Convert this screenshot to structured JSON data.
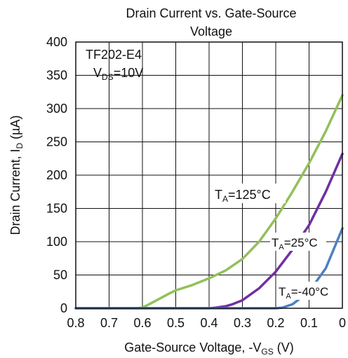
{
  "chart_data": {
    "type": "line",
    "title": [
      "Drain Current vs. Gate-Source",
      "Voltage"
    ],
    "part_number": "TF202-E4",
    "condition": {
      "main": "V",
      "sub": "DS",
      "rest": "=10V"
    },
    "xlabel": {
      "main": "Gate-Source Voltage, -V",
      "sub": "GS",
      "rest": " (V)"
    },
    "ylabel": {
      "main": "Drain Current, I",
      "sub": "D",
      "rest": " (µA)"
    },
    "xlim": [
      0.8,
      0
    ],
    "ylim": [
      0,
      400
    ],
    "x_ticks": [
      0.8,
      0.7,
      0.6,
      0.5,
      0.4,
      0.3,
      0.2,
      0.1,
      0
    ],
    "x_tick_labels": [
      "0.8",
      "0.7",
      "0.6",
      "0.5",
      "0.4",
      "0.3",
      "0.2",
      "0.1",
      "0"
    ],
    "y_ticks": [
      0,
      50,
      100,
      150,
      200,
      250,
      300,
      350,
      400
    ],
    "y_tick_labels": [
      "0",
      "50",
      "100",
      "150",
      "200",
      "250",
      "300",
      "350",
      "400"
    ],
    "grid": true,
    "series": [
      {
        "name": {
          "main": "T",
          "sub": "A",
          "rest": "=125°C"
        },
        "color": "#92c05a",
        "x": [
          0.8,
          0.7,
          0.62,
          0.6,
          0.58,
          0.55,
          0.52,
          0.5,
          0.45,
          0.4,
          0.35,
          0.3,
          0.25,
          0.2,
          0.15,
          0.1,
          0.05,
          0
        ],
        "y": [
          0,
          0,
          0,
          1,
          6,
          14,
          22,
          27,
          35,
          45,
          57,
          74,
          100,
          135,
          175,
          218,
          266,
          320
        ]
      },
      {
        "name": {
          "main": "T",
          "sub": "A",
          "rest": "=25°C"
        },
        "color": "#7030a0",
        "x": [
          0.8,
          0.5,
          0.45,
          0.4,
          0.38,
          0.35,
          0.33,
          0.3,
          0.25,
          0.2,
          0.15,
          0.1,
          0.05,
          0
        ],
        "y": [
          0,
          0,
          0,
          0,
          1,
          3,
          6,
          12,
          30,
          55,
          88,
          125,
          175,
          232
        ]
      },
      {
        "name": {
          "main": "T",
          "sub": "A",
          "rest": "=-40°C"
        },
        "color": "#4f81bd",
        "x": [
          0.8,
          0.3,
          0.25,
          0.2,
          0.18,
          0.15,
          0.1,
          0.05,
          0
        ],
        "y": [
          0,
          0,
          0,
          0,
          1,
          6,
          25,
          60,
          120
        ]
      }
    ]
  }
}
